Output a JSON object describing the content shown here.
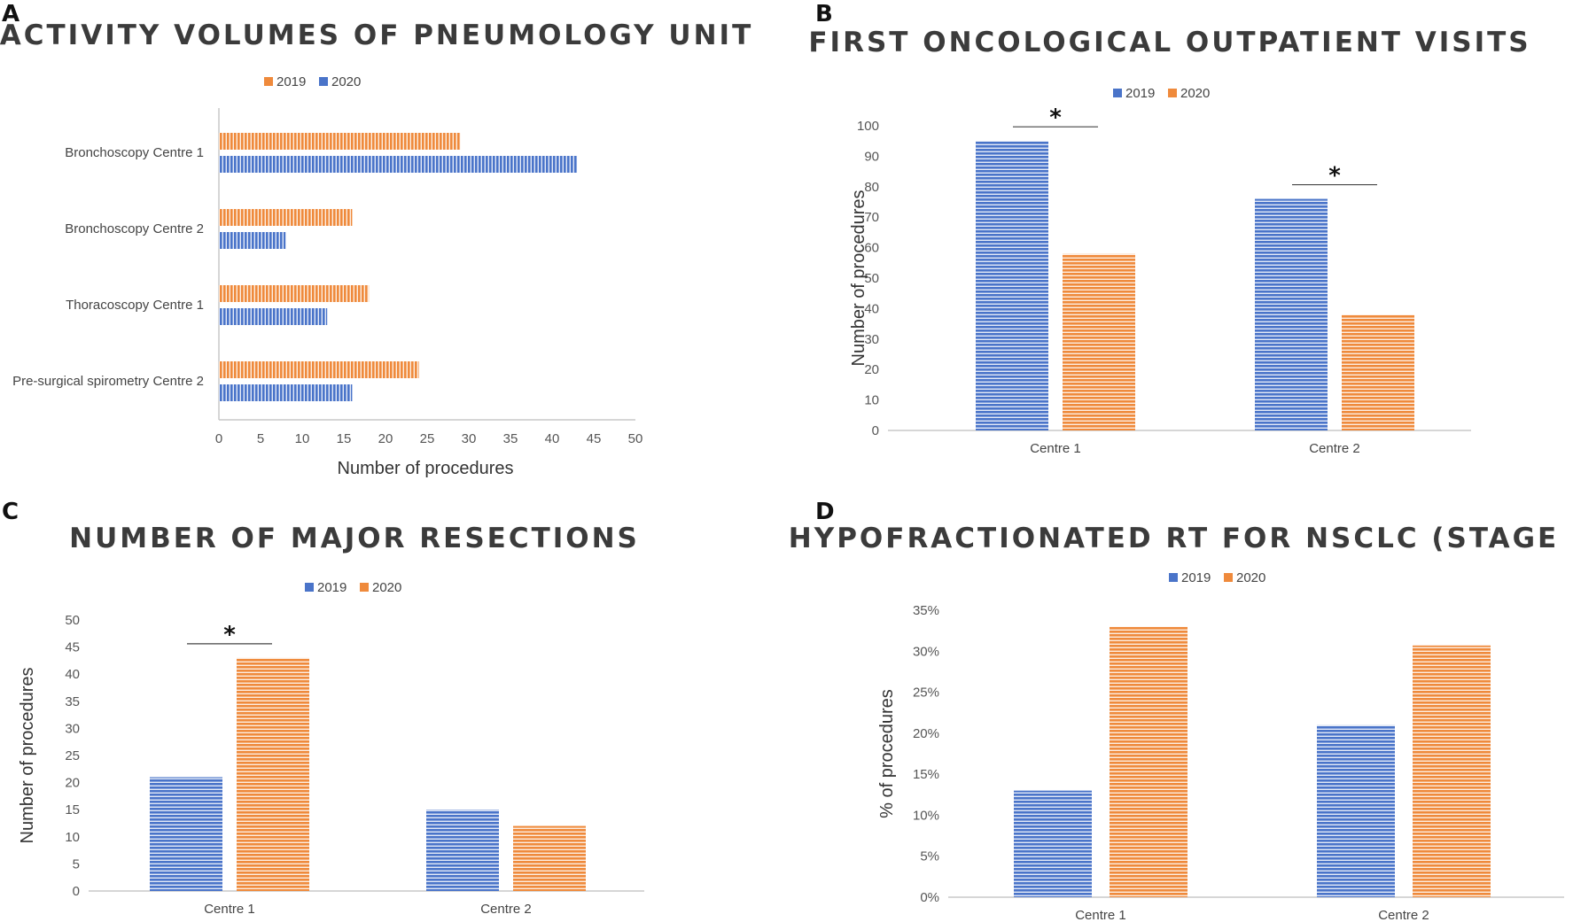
{
  "colors": {
    "c2019_orange": "#ef8a3c",
    "c2020_blue": "#4a74c9",
    "axis": "#c8c8c8"
  },
  "chart_data": [
    {
      "panel": "A",
      "type": "bar",
      "orientation": "horizontal",
      "title": "ACTIVITY VOLUMES OF PNEUMOLOGY UNIT",
      "categories": [
        "Bronchoscopy Centre 1",
        "Bronchoscopy Centre 2",
        "Thoracoscopy Centre 1",
        "Pre-surgical spirometry Centre 2"
      ],
      "series": [
        {
          "name": "2019",
          "color": "#ef8a3c",
          "values": [
            29,
            16,
            18,
            24
          ]
        },
        {
          "name": "2020",
          "color": "#4a74c9",
          "values": [
            43,
            8,
            13,
            16
          ]
        }
      ],
      "xlabel": "Number of procedures",
      "ylabel": "",
      "xlim": [
        0,
        50
      ],
      "ticks": [
        "0",
        "5",
        "10",
        "15",
        "20",
        "25",
        "30",
        "35",
        "40",
        "45",
        "50"
      ],
      "legend": "top"
    },
    {
      "panel": "B",
      "type": "bar",
      "title": "FIRST ONCOLOGICAL OUTPATIENT VISITS",
      "categories": [
        "Centre 1",
        "Centre 2"
      ],
      "series": [
        {
          "name": "2019",
          "color": "#4a74c9",
          "values": [
            95,
            76
          ]
        },
        {
          "name": "2020",
          "color": "#ef8a3c",
          "values": [
            58,
            38
          ]
        }
      ],
      "xlabel": "",
      "ylabel": "Number of procedures",
      "ylim": [
        0,
        100
      ],
      "ticks": [
        "0",
        "10",
        "20",
        "30",
        "40",
        "50",
        "60",
        "70",
        "80",
        "90",
        "100"
      ],
      "significance": [
        "*",
        "*"
      ],
      "legend": "top"
    },
    {
      "panel": "C",
      "type": "bar",
      "title": "NUMBER OF MAJOR RESECTIONS",
      "categories": [
        "Centre 1",
        "Centre 2"
      ],
      "series": [
        {
          "name": "2019",
          "color": "#4a74c9",
          "values": [
            21,
            15
          ]
        },
        {
          "name": "2020",
          "color": "#ef8a3c",
          "values": [
            43,
            12
          ]
        }
      ],
      "xlabel": "",
      "ylabel": "Number of procedures",
      "ylim": [
        0,
        50
      ],
      "ticks": [
        "0",
        "5",
        "10",
        "15",
        "20",
        "25",
        "30",
        "35",
        "40",
        "45",
        "50"
      ],
      "significance": [
        "*",
        ""
      ],
      "legend": "top"
    },
    {
      "panel": "D",
      "type": "bar",
      "title": "HYPOFRACTIONATED RT FOR NSCLC (STAGE I-III)",
      "categories": [
        "Centre 1",
        "Centre 2"
      ],
      "series": [
        {
          "name": "2019",
          "color": "#4a74c9",
          "values": [
            13,
            21
          ]
        },
        {
          "name": "2020",
          "color": "#ef8a3c",
          "values": [
            33,
            30.7
          ]
        }
      ],
      "xlabel": "",
      "ylabel": "% of procedures",
      "ylim": [
        0,
        35
      ],
      "ticks": [
        "0%",
        "5%",
        "10%",
        "15%",
        "20%",
        "25%",
        "30%",
        "35%"
      ],
      "significance": [
        "",
        ""
      ],
      "legend": "top"
    }
  ]
}
